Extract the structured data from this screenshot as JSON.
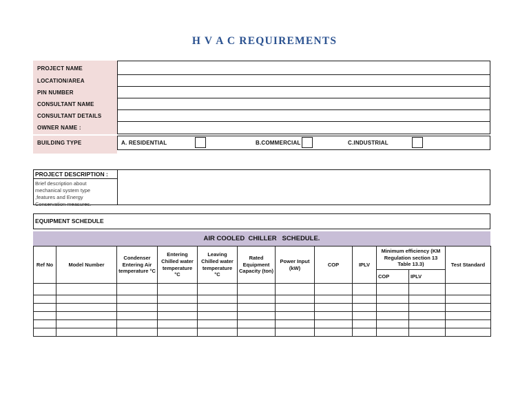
{
  "title": "H V A C REQUIREMENTS",
  "colors": {
    "label_background": "#F2DCDB",
    "banner_background": "#C8BED7",
    "title_blue": "#2B5290",
    "border_black": "#1a1a1a"
  },
  "form": {
    "fields": [
      {
        "label": "PROJECT NAME",
        "value": ""
      },
      {
        "label": "LOCATION/AREA",
        "value": ""
      },
      {
        "label": "PIN NUMBER",
        "value": ""
      },
      {
        "label": "CONSULTANT NAME",
        "value": ""
      },
      {
        "label": "CONSULTANT DETAILS",
        "value": ""
      },
      {
        "label": "OWNER NAME :",
        "value": ""
      }
    ],
    "building_type": {
      "label": "BUILDING TYPE",
      "options": [
        {
          "label": "A. RESIDENTIAL",
          "checked": false
        },
        {
          "label": "B.COMMERCIAL",
          "checked": false
        },
        {
          "label": "C.INDUSTRIAL",
          "checked": false
        }
      ]
    }
  },
  "project_description": {
    "heading": "PROJECT DESCRIPTION :",
    "note": "Brief description about\nmechanical system type\n,features and Energy\nConservation measures.",
    "value": ""
  },
  "equipment_schedule_heading": "EQUIPMENT SCHEDULE",
  "chiller_schedule": {
    "banner": "AIR COOLED  CHILLER   SCHEDULE.",
    "columns": [
      "Ref No",
      "Model Number",
      "Condenser Entering Air temperature °C",
      "Entering Chilled water temperature °C",
      "Leaving Chilled water temperature °C",
      "Rated Equipment Capacity (ton)",
      "Power Input (kW)",
      "COP",
      "IPLV"
    ],
    "min_efficiency_group": {
      "label": "Minimum efficiency (KM Regulation section 13 Table 13.3)",
      "sub_columns": [
        "COP",
        "IPLV"
      ]
    },
    "test_standard_column": "Test Standard",
    "empty_rows": 6,
    "rows": []
  }
}
